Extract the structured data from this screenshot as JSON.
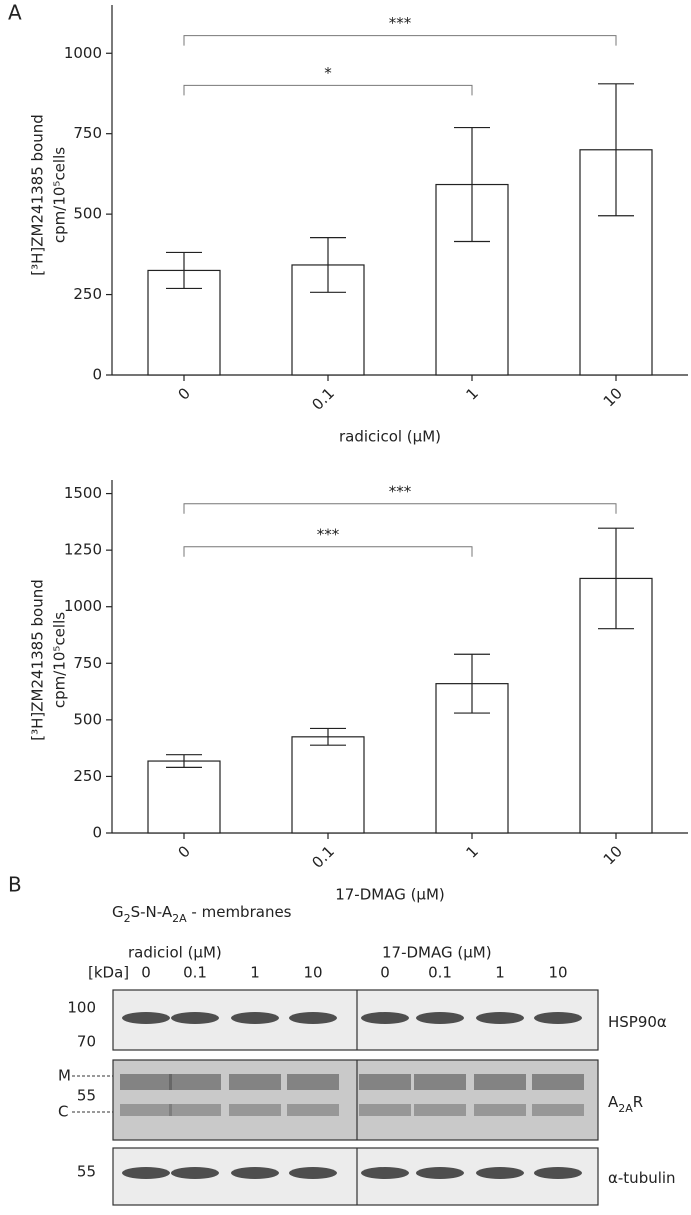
{
  "panel_labels": [
    "A",
    "B"
  ],
  "chart_data": [
    {
      "type": "bar",
      "y_label": [
        "[³H]ZM241385 bound",
        "cpm/10⁵cells"
      ],
      "x_label": "radicicol (µM)",
      "categories": [
        "0",
        "0.1",
        "1",
        "10"
      ],
      "values": [
        325,
        342,
        592,
        700
      ],
      "errors": [
        56,
        85,
        177,
        205
      ],
      "color": "#ffffff",
      "ylim": [
        0,
        1150
      ],
      "yticks": [
        0,
        250,
        500,
        750,
        1000
      ],
      "annotations": [
        {
          "label": "***",
          "from": "0",
          "to": "10",
          "y": 1055
        },
        {
          "label": "*",
          "from": "0",
          "to": "1",
          "y": 900
        }
      ]
    },
    {
      "type": "bar",
      "y_label": [
        "[³H]ZM241385 bound",
        "cpm/10⁵cells"
      ],
      "x_label": "17-DMAG (µM)",
      "categories": [
        "0",
        "0.1",
        "1",
        "10"
      ],
      "values": [
        318,
        425,
        660,
        1125
      ],
      "errors": [
        28,
        37,
        130,
        222
      ],
      "color": "#ffffff",
      "ylim": [
        0,
        1560
      ],
      "yticks": [
        0,
        250,
        500,
        750,
        1000,
        1250,
        1500
      ],
      "annotations": [
        {
          "label": "***",
          "from": "0",
          "to": "10",
          "y": 1455
        },
        {
          "label": "***",
          "from": "0",
          "to": "1",
          "y": 1265
        }
      ]
    }
  ],
  "blot": {
    "title": [
      {
        "text": "G"
      },
      {
        "text": "2",
        "sub": true
      },
      {
        "text": "S-N-A"
      },
      {
        "text": "2A",
        "sub": true
      },
      {
        "text": " - membranes"
      }
    ],
    "groups": [
      "radiciol (µM)",
      "17-DMAG (µM)"
    ],
    "kda": "[kDa]",
    "lanes": [
      "0",
      "0.1",
      "1",
      "10",
      "0",
      "0.1",
      "1",
      "10"
    ],
    "markers": [
      "100",
      "70",
      "M",
      "55",
      "C",
      "55"
    ],
    "rows": [
      [
        {
          "text": "HSP90α"
        }
      ],
      [
        {
          "text": "A"
        },
        {
          "text": "2A",
          "sub": true
        },
        {
          "text": "R"
        }
      ],
      [
        {
          "text": "α-tubulin"
        }
      ]
    ]
  }
}
